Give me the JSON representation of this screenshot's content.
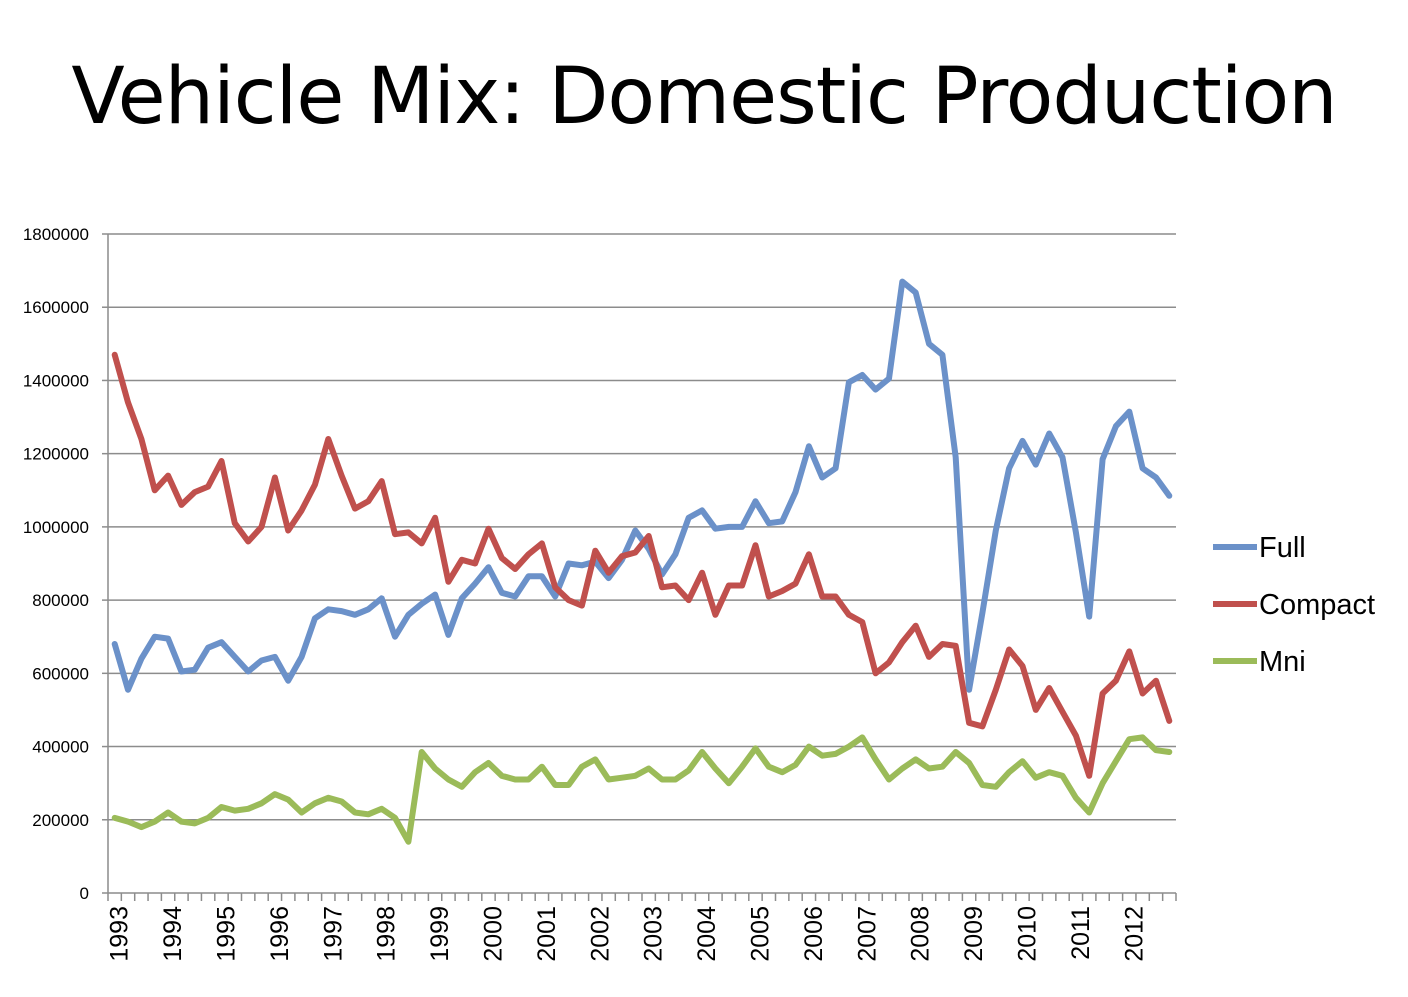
{
  "chart_data": {
    "type": "line",
    "title": "Vehicle Mix: Domestic Production",
    "xlabel": "",
    "ylabel": "",
    "ylim": [
      0,
      1800000
    ],
    "yticks": [
      0,
      200000,
      400000,
      600000,
      800000,
      1000000,
      1200000,
      1400000,
      1600000,
      1800000
    ],
    "ytick_labels": [
      "0",
      "200000",
      "400000",
      "600000",
      "800000",
      "1000000",
      "1200000",
      "1400000",
      "1600000",
      "1800000"
    ],
    "grid": true,
    "legend_position": "right",
    "x_tick_labels": [
      "1993",
      "1994",
      "1995",
      "1996",
      "1997",
      "1998",
      "1999",
      "2000",
      "2001",
      "2002",
      "2003",
      "2004",
      "2005",
      "2006",
      "2007",
      "2008",
      "2009",
      "2010",
      "2011",
      "2012"
    ],
    "points_per_year": 4,
    "series": [
      {
        "name": "Full",
        "color": "#6b91c9",
        "values": [
          680000,
          555000,
          640000,
          700000,
          695000,
          605000,
          610000,
          670000,
          685000,
          645000,
          605000,
          635000,
          645000,
          580000,
          645000,
          750000,
          775000,
          770000,
          760000,
          775000,
          805000,
          700000,
          760000,
          790000,
          815000,
          705000,
          805000,
          845000,
          890000,
          820000,
          810000,
          865000,
          865000,
          810000,
          900000,
          895000,
          905000,
          860000,
          910000,
          990000,
          940000,
          870000,
          925000,
          1025000,
          1045000,
          995000,
          1000000,
          1000000,
          1070000,
          1010000,
          1015000,
          1095000,
          1220000,
          1135000,
          1160000,
          1395000,
          1415000,
          1375000,
          1405000,
          1670000,
          1640000,
          1500000,
          1470000,
          1190000,
          555000,
          765000,
          990000,
          1160000,
          1235000,
          1170000,
          1255000,
          1190000,
          985000,
          755000,
          1185000,
          1275000,
          1315000,
          1160000,
          1135000,
          1085000
        ]
      },
      {
        "name": "Compact",
        "color": "#c0504d",
        "values": [
          1470000,
          1340000,
          1240000,
          1100000,
          1140000,
          1060000,
          1095000,
          1110000,
          1180000,
          1010000,
          960000,
          1000000,
          1135000,
          990000,
          1045000,
          1115000,
          1240000,
          1140000,
          1050000,
          1070000,
          1125000,
          980000,
          985000,
          955000,
          1025000,
          850000,
          910000,
          900000,
          995000,
          915000,
          885000,
          925000,
          955000,
          835000,
          800000,
          785000,
          935000,
          875000,
          920000,
          930000,
          975000,
          835000,
          840000,
          800000,
          875000,
          760000,
          840000,
          840000,
          950000,
          810000,
          825000,
          845000,
          925000,
          810000,
          810000,
          760000,
          740000,
          600000,
          630000,
          685000,
          730000,
          645000,
          680000,
          675000,
          465000,
          455000,
          555000,
          665000,
          620000,
          500000,
          560000,
          495000,
          430000,
          320000,
          545000,
          580000,
          660000,
          545000,
          580000,
          470000
        ]
      },
      {
        "name": "Mni",
        "color": "#9bbb59",
        "values": [
          205000,
          195000,
          180000,
          195000,
          220000,
          195000,
          190000,
          205000,
          235000,
          225000,
          230000,
          245000,
          270000,
          255000,
          220000,
          245000,
          260000,
          250000,
          220000,
          215000,
          230000,
          205000,
          140000,
          385000,
          340000,
          310000,
          290000,
          330000,
          355000,
          320000,
          310000,
          310000,
          345000,
          295000,
          295000,
          345000,
          365000,
          310000,
          315000,
          320000,
          340000,
          310000,
          310000,
          335000,
          385000,
          340000,
          300000,
          345000,
          395000,
          345000,
          330000,
          350000,
          400000,
          375000,
          380000,
          400000,
          425000,
          365000,
          310000,
          340000,
          365000,
          340000,
          345000,
          385000,
          355000,
          295000,
          290000,
          330000,
          360000,
          315000,
          330000,
          320000,
          260000,
          220000,
          300000,
          360000,
          420000,
          425000,
          390000,
          385000
        ]
      }
    ]
  }
}
